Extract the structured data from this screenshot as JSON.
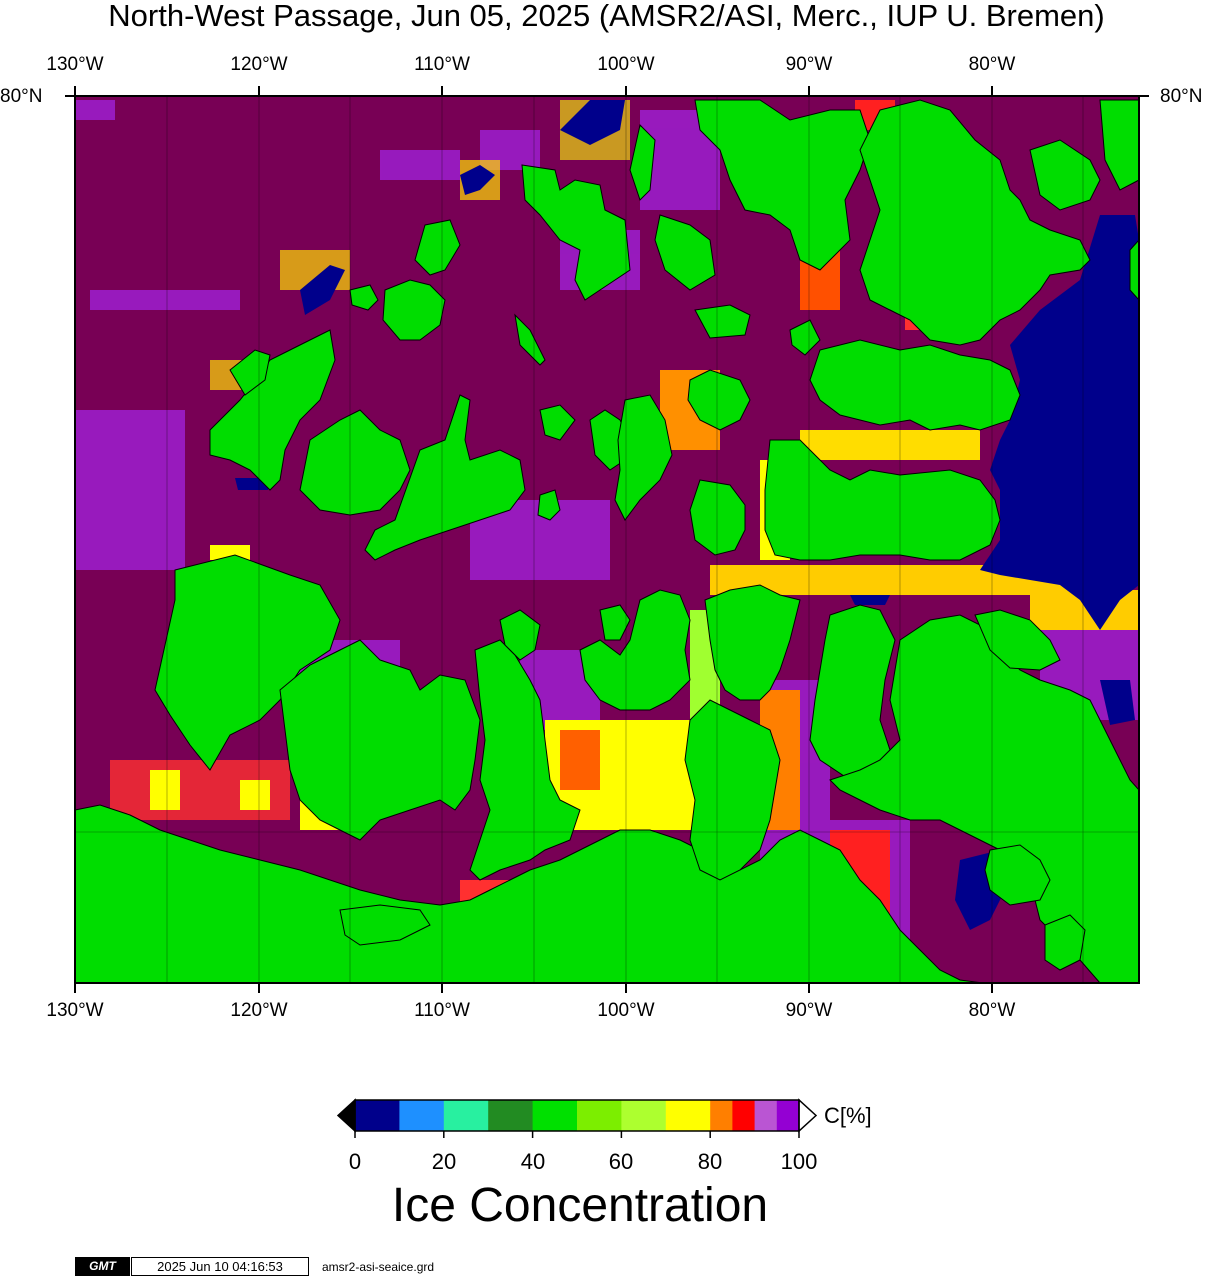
{
  "title": "North-West Passage, Jun 05, 2025 (AMSR2/ASI, Merc., IUP U. Bremen)",
  "lon_labels": [
    "130°W",
    "120°W",
    "110°W",
    "100°W",
    "90°W",
    "80°W"
  ],
  "lat_labels": {
    "left": "80°N",
    "right": "80°N"
  },
  "colorbar": {
    "title": "Ice Concentration",
    "unit": "C[%]",
    "ticks": [
      "0",
      "20",
      "40",
      "60",
      "80",
      "100"
    ],
    "colors": [
      "#00008b",
      "#1e90ff",
      "#28f0a0",
      "#228b22",
      "#00e000",
      "#7cee00",
      "#adff2f",
      "#ffff00",
      "#ff7f00",
      "#ff0000",
      "#ba55d3",
      "#9400d3"
    ],
    "low_color": "#000000",
    "high_color": "#ffffff"
  },
  "legend_colors": {
    "land": "#00dd00",
    "full_ice": "#780055",
    "open_water": "#00008b"
  },
  "footer": {
    "logo": "GMT",
    "timestamp": "2025 Jun 10 04:16:53",
    "filename": "amsr2-asi-seaice.grd"
  }
}
